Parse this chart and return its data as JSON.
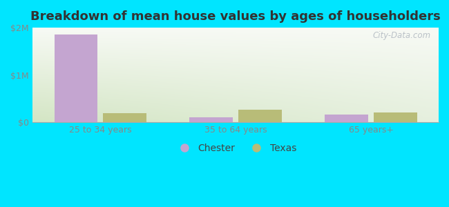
{
  "title": "Breakdown of mean house values by ages of householders",
  "categories": [
    "25 to 34 years",
    "35 to 64 years",
    "65 years+"
  ],
  "chester_values": [
    1850000,
    95000,
    160000
  ],
  "texas_values": [
    195000,
    260000,
    205000
  ],
  "chester_color": "#c4a5d0",
  "texas_color": "#b8bc78",
  "background_color": "#00e5ff",
  "plot_bg_tl": "#f0f5ec",
  "plot_bg_tr": "#f8f8f5",
  "plot_bg_bl": "#d8e8c8",
  "plot_bg_br": "#e8f0e0",
  "ylim": [
    0,
    2000000
  ],
  "yticks": [
    0,
    1000000,
    2000000
  ],
  "ytick_labels": [
    "$0",
    "$1M",
    "$2M"
  ],
  "bar_width": 0.32,
  "legend_labels": [
    "Chester",
    "Texas"
  ],
  "watermark": "City-Data.com",
  "title_fontsize": 13,
  "tick_fontsize": 9,
  "legend_fontsize": 10
}
